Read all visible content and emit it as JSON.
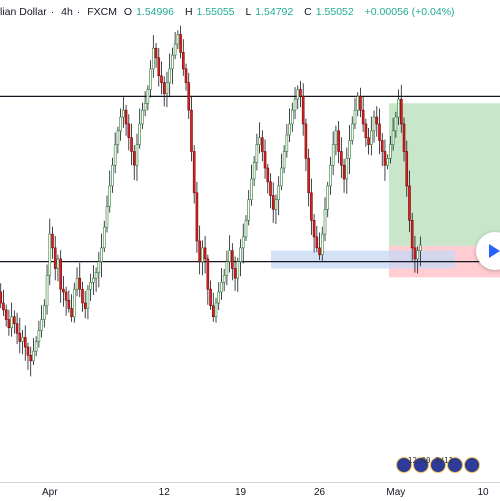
{
  "header": {
    "symbol": "lian Dollar",
    "timeframe": "4h",
    "exchange": "FXCM",
    "open_label": "O",
    "open": "1.54996",
    "high_label": "H",
    "high": "1.55055",
    "low_label": "L",
    "low": "1.54792",
    "close_label": "C",
    "close": "1.55052",
    "change": "+0.00056 (+0.04%)"
  },
  "colors": {
    "up": "#26a69a",
    "down": "#ef5350",
    "candle_body_up": "#ffffff",
    "candle_body_down": "#c62828",
    "wick": "#131722",
    "profit_zone": "#c8e6c9",
    "loss_zone": "#ffcdd2",
    "highlight_box": "#c5d8f5",
    "play": "#2962ff"
  },
  "icons": {
    "play": "play-icon",
    "badge": "coin-badge-icon"
  },
  "badge_text": "12:00 3/11",
  "chart_data": {
    "type": "candlestick",
    "title": "",
    "price_range": [
      1.53,
      1.565
    ],
    "x_ticks": [
      "Apr",
      "12",
      "19",
      "26",
      "May",
      "10"
    ],
    "x_tick_index": [
      19,
      61,
      89,
      118,
      146,
      178
    ],
    "resistance_level": 1.558,
    "support_level": 1.546,
    "position": {
      "entry": 1.547,
      "target": 1.5575,
      "stop": 1.545
    },
    "highlight_range": {
      "high": 1.5468,
      "low": 1.5455
    },
    "closes": [
      1.5438,
      1.543,
      1.5425,
      1.5418,
      1.5412,
      1.542,
      1.5415,
      1.5408,
      1.5402,
      1.5405,
      1.5398,
      1.5392,
      1.5388,
      1.5395,
      1.5402,
      1.541,
      1.5418,
      1.5428,
      1.545,
      1.548,
      1.547,
      1.5455,
      1.5462,
      1.544,
      1.5438,
      1.5432,
      1.5426,
      1.542,
      1.544,
      1.5448,
      1.544,
      1.543,
      1.5426,
      1.544,
      1.5445,
      1.5448,
      1.5452,
      1.546,
      1.547,
      1.5485,
      1.55,
      1.5515,
      1.553,
      1.5545,
      1.5555,
      1.5565,
      1.557,
      1.556,
      1.555,
      1.554,
      1.553,
      1.5545,
      1.556,
      1.557,
      1.5575,
      1.5585,
      1.56,
      1.5615,
      1.5608,
      1.5595,
      1.559,
      1.5582,
      1.559,
      1.56,
      1.561,
      1.5618,
      1.5625,
      1.5612,
      1.56,
      1.559,
      1.557,
      1.554,
      1.551,
      1.5475,
      1.546,
      1.547,
      1.5462,
      1.544,
      1.5428,
      1.542,
      1.543,
      1.5438,
      1.5445,
      1.545,
      1.546,
      1.5468,
      1.5455,
      1.5448,
      1.546,
      1.547,
      1.5478,
      1.549,
      1.5505,
      1.552,
      1.5532,
      1.5545,
      1.555,
      1.554,
      1.5528,
      1.5518,
      1.5508,
      1.5498,
      1.5505,
      1.5515,
      1.5528,
      1.554,
      1.5552,
      1.556,
      1.557,
      1.5578,
      1.5585,
      1.558,
      1.556,
      1.5535,
      1.551,
      1.549,
      1.5478,
      1.547,
      1.5465,
      1.548,
      1.5498,
      1.5515,
      1.553,
      1.5545,
      1.5555,
      1.554,
      1.553,
      1.552,
      1.5535,
      1.5548,
      1.556,
      1.557,
      1.558,
      1.557,
      1.556,
      1.555,
      1.5545,
      1.5555,
      1.5565,
      1.556,
      1.5548,
      1.554,
      1.553,
      1.5535,
      1.5545,
      1.5555,
      1.5565,
      1.5578,
      1.556,
      1.554,
      1.5515,
      1.549,
      1.547,
      1.5462,
      1.5468,
      1.5472
    ]
  }
}
